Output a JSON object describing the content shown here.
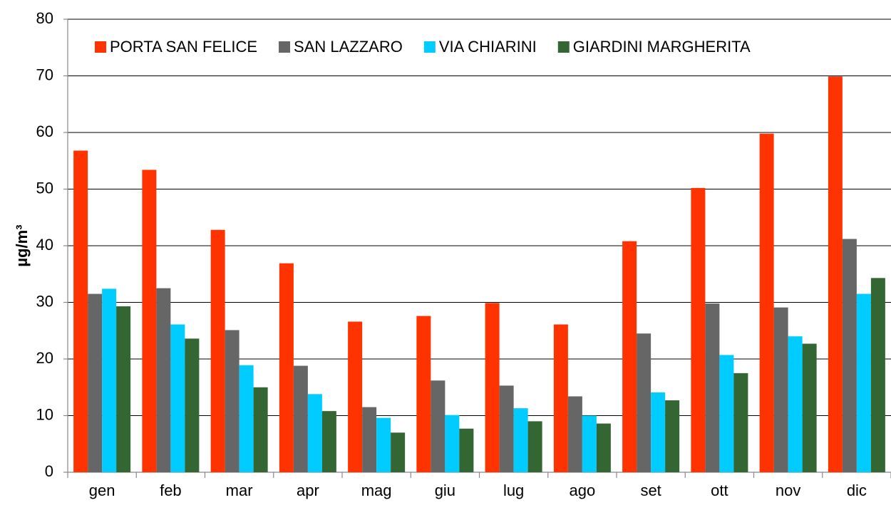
{
  "chart_data": {
    "type": "bar",
    "y_label": "µg/m³",
    "categories": [
      "gen",
      "feb",
      "mar",
      "apr",
      "mag",
      "giu",
      "lug",
      "ago",
      "set",
      "ott",
      "nov",
      "dic"
    ],
    "series": [
      {
        "name": "PORTA SAN FELICE",
        "color": "#ff3300",
        "values": [
          56.8,
          53.4,
          42.8,
          36.9,
          26.6,
          27.6,
          29.9,
          26.1,
          40.8,
          50.2,
          59.8,
          69.9
        ]
      },
      {
        "name": "SAN LAZZARO",
        "color": "#666666",
        "values": [
          31.5,
          32.5,
          25.1,
          18.8,
          11.5,
          16.2,
          15.3,
          13.4,
          24.5,
          29.8,
          29.1,
          41.2
        ]
      },
      {
        "name": "VIA CHIARINI",
        "color": "#00ccff",
        "values": [
          32.4,
          26.1,
          18.9,
          13.8,
          9.6,
          10.1,
          11.3,
          10.0,
          14.1,
          20.7,
          24.0,
          31.5
        ]
      },
      {
        "name": "GIARDINI MARGHERITA",
        "color": "#336633",
        "values": [
          29.3,
          23.6,
          15.0,
          10.8,
          7.0,
          7.7,
          9.0,
          8.6,
          12.7,
          17.5,
          22.7,
          34.3
        ]
      }
    ],
    "ylim": [
      0,
      80
    ],
    "yticks": [
      0,
      10,
      20,
      30,
      40,
      50,
      60,
      70,
      80
    ],
    "grid": true,
    "legend": "top"
  }
}
